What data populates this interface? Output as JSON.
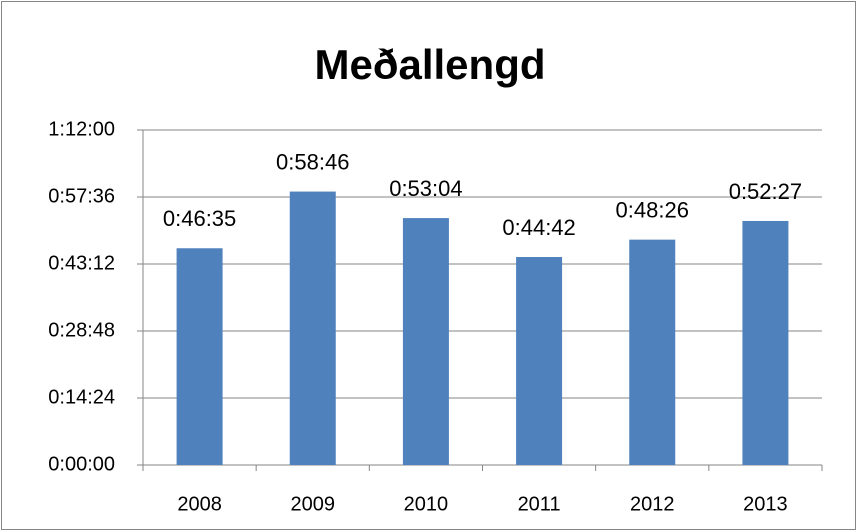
{
  "chart_data": {
    "type": "bar",
    "title": "Meðallengd",
    "categories": [
      "2008",
      "2009",
      "2010",
      "2011",
      "2012",
      "2013"
    ],
    "values": [
      2795,
      3526,
      3184,
      2682,
      2906,
      3147
    ],
    "value_labels": [
      "0:46:35",
      "0:58:46",
      "0:53:04",
      "0:44:42",
      "0:48:26",
      "0:52:27"
    ],
    "color": "#4f81bd",
    "ylim": [
      0,
      4320
    ],
    "yticks": [
      {
        "value": 0,
        "label": "0:00:00"
      },
      {
        "value": 864,
        "label": "0:14:24"
      },
      {
        "value": 1728,
        "label": "0:28:48"
      },
      {
        "value": 2592,
        "label": "0:43:12"
      },
      {
        "value": 3456,
        "label": "0:57:36"
      },
      {
        "value": 4320,
        "label": "1:12:00"
      }
    ],
    "grid": true
  }
}
